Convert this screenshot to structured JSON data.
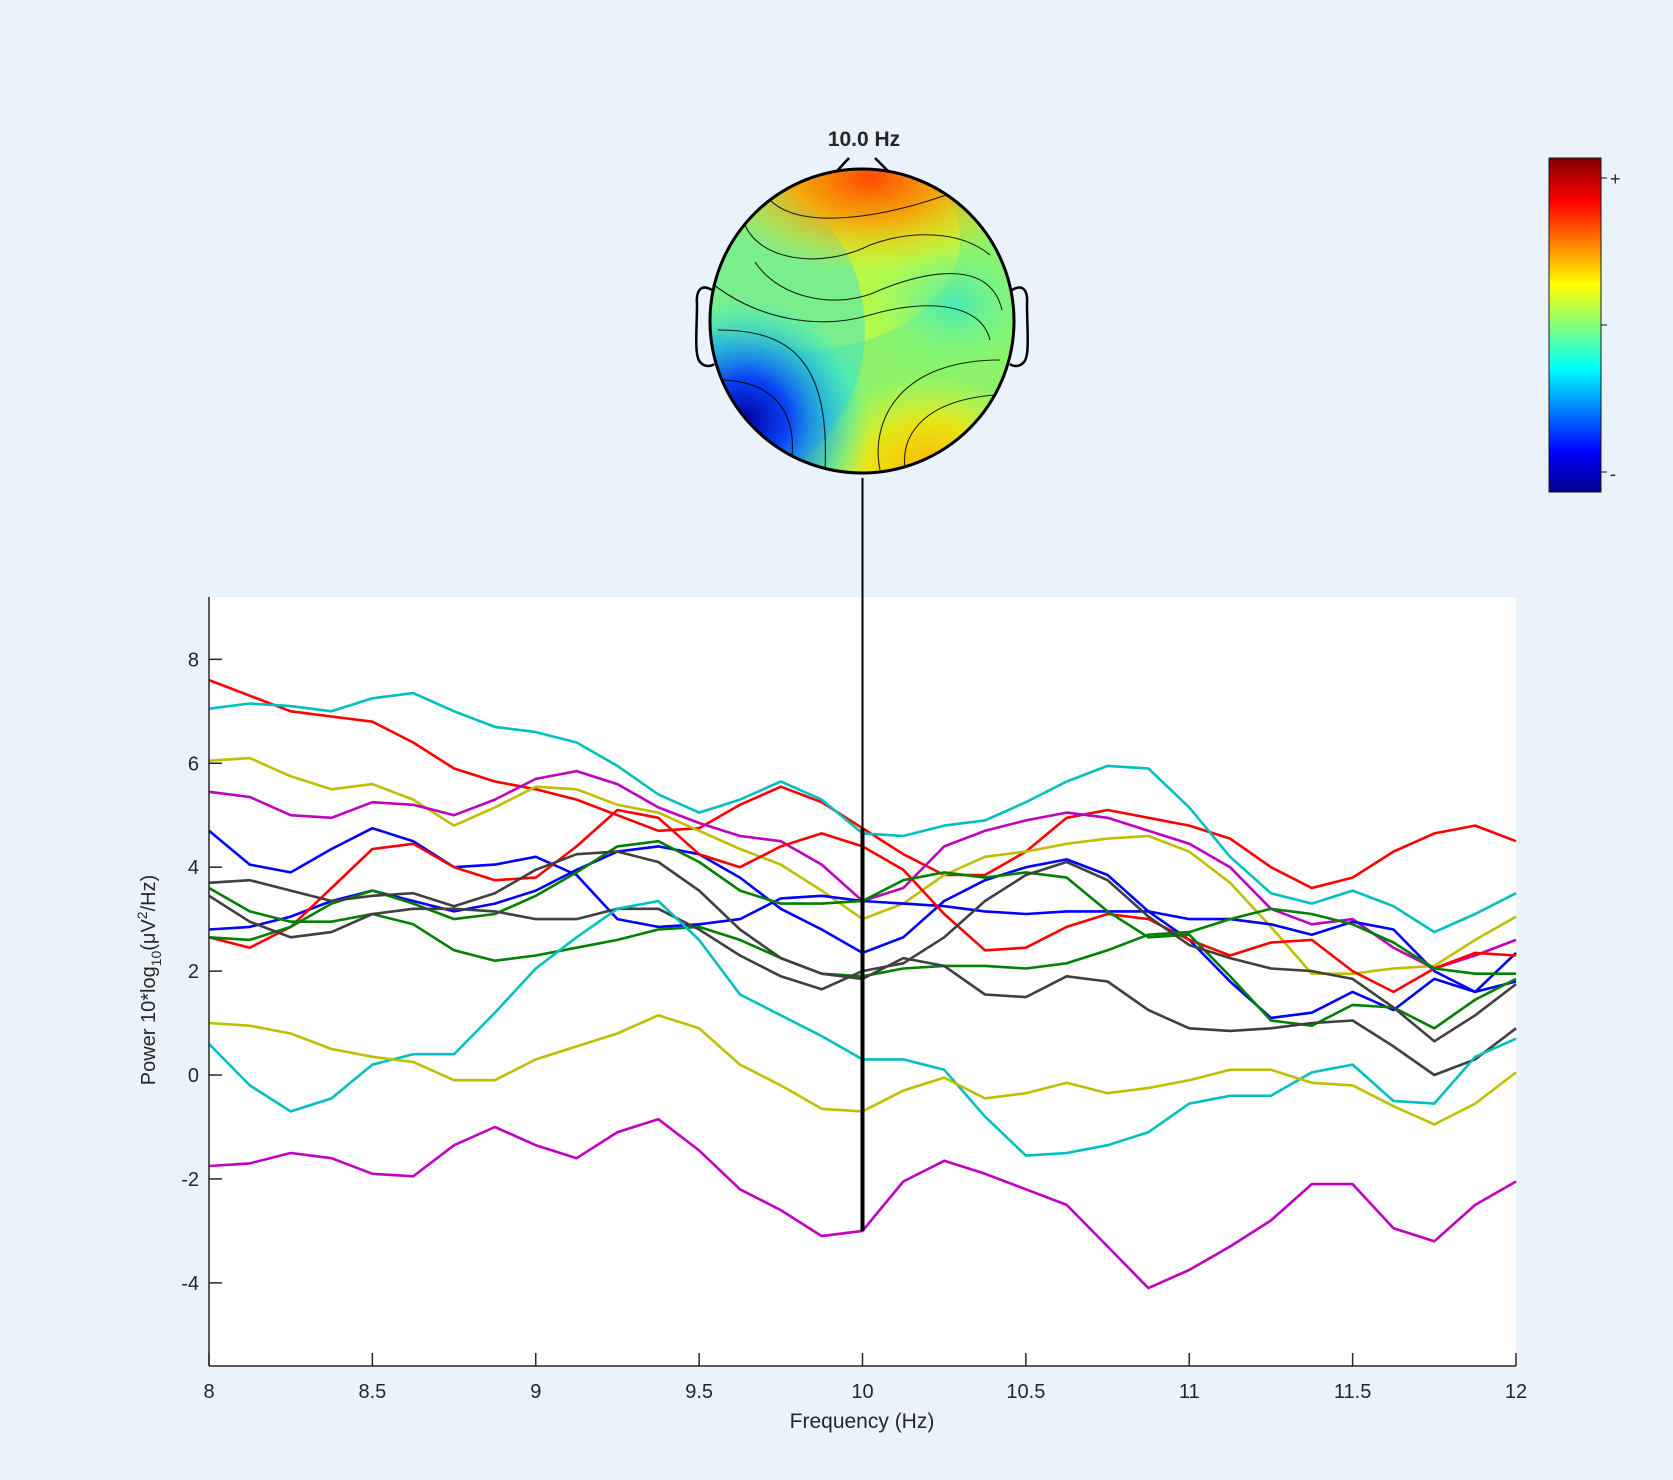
{
  "chart_data": {
    "type": "line",
    "topoplot": {
      "title": "10.0 Hz",
      "frequency": 10,
      "colorbar_labels": {
        "max": "+",
        "min": "-"
      },
      "colormap": [
        "#00008f",
        "#0000ff",
        "#00ffff",
        "#ffff00",
        "#ff0000",
        "#800000"
      ]
    },
    "xlabel": "Frequency (Hz)",
    "ylabel_parts": {
      "prefix": "Power 10*log",
      "sub1": "10",
      "mid": "(μV",
      "sup": "2",
      "suffix": "/Hz)"
    },
    "xlim": [
      8,
      12
    ],
    "ylim": [
      -5.6,
      9.2
    ],
    "xticks": [
      {
        "value": 8,
        "label": "8"
      },
      {
        "value": 8.5,
        "label": "8.5"
      },
      {
        "value": 9,
        "label": "9"
      },
      {
        "value": 9.5,
        "label": "9.5"
      },
      {
        "value": 10,
        "label": "10"
      },
      {
        "value": 10.5,
        "label": "10.5"
      },
      {
        "value": 11,
        "label": "11"
      },
      {
        "value": 11.5,
        "label": "11.5"
      },
      {
        "value": 12,
        "label": "12"
      }
    ],
    "yticks": [
      {
        "value": 8,
        "label": "8"
      },
      {
        "value": 6,
        "label": "6"
      },
      {
        "value": 4,
        "label": "4"
      },
      {
        "value": 2,
        "label": "2"
      },
      {
        "value": 0,
        "label": "0"
      },
      {
        "value": -2,
        "label": "-2"
      },
      {
        "value": -4,
        "label": "-4"
      }
    ],
    "marker": {
      "x": 10,
      "y_range": [
        -3.0,
        4.75
      ]
    },
    "x": [
      8.0,
      8.125,
      8.25,
      8.375,
      8.5,
      8.625,
      8.75,
      8.875,
      9.0,
      9.125,
      9.25,
      9.375,
      9.5,
      9.625,
      9.75,
      9.875,
      10.0,
      10.125,
      10.25,
      10.375,
      10.5,
      10.625,
      10.75,
      10.875,
      11.0,
      11.125,
      11.25,
      11.375,
      11.5,
      11.625,
      11.75,
      11.875,
      12.0
    ],
    "series": [
      {
        "color": "#ff0000",
        "values": [
          7.6,
          7.3,
          7.0,
          6.9,
          6.8,
          6.4,
          5.9,
          5.65,
          5.5,
          5.3,
          5.0,
          4.7,
          4.75,
          5.2,
          5.55,
          5.25,
          4.75,
          4.25,
          3.85,
          3.85,
          4.3,
          4.95,
          5.1,
          4.95,
          4.8,
          4.55,
          4.0,
          3.6,
          3.8,
          4.3,
          4.65,
          4.8,
          4.5
        ]
      },
      {
        "color": "#00bfbf",
        "values": [
          7.05,
          7.15,
          7.1,
          7.0,
          7.25,
          7.35,
          7.0,
          6.7,
          6.6,
          6.4,
          5.95,
          5.4,
          5.05,
          5.3,
          5.65,
          5.3,
          4.65,
          4.6,
          4.8,
          4.9,
          5.25,
          5.65,
          5.95,
          5.9,
          5.15,
          4.2,
          3.5,
          3.3,
          3.55,
          3.25,
          2.75,
          3.1,
          3.5
        ]
      },
      {
        "color": "#bfbf00",
        "values": [
          6.05,
          6.1,
          5.75,
          5.5,
          5.6,
          5.3,
          4.8,
          5.15,
          5.55,
          5.5,
          5.2,
          5.05,
          4.7,
          4.35,
          4.05,
          3.55,
          3.0,
          3.3,
          3.85,
          4.2,
          4.3,
          4.45,
          4.55,
          4.6,
          4.3,
          3.7,
          2.85,
          1.95,
          1.95,
          2.05,
          2.1,
          2.6,
          3.05
        ]
      },
      {
        "color": "#bf00bf",
        "values": [
          5.45,
          5.35,
          5.0,
          4.95,
          5.25,
          5.2,
          5.0,
          5.3,
          5.7,
          5.85,
          5.6,
          5.15,
          4.85,
          4.6,
          4.5,
          4.05,
          3.35,
          3.6,
          4.4,
          4.7,
          4.9,
          5.05,
          4.95,
          4.7,
          4.45,
          4.0,
          3.2,
          2.9,
          3.0,
          2.45,
          2.05,
          2.3,
          2.6
        ]
      },
      {
        "color": "#0000ff",
        "values": [
          4.7,
          4.05,
          3.9,
          4.35,
          4.75,
          4.5,
          4.0,
          4.05,
          4.2,
          3.85,
          3.0,
          2.85,
          2.9,
          3.0,
          3.4,
          3.45,
          3.35,
          3.3,
          3.25,
          3.15,
          3.1,
          3.15,
          3.15,
          3.15,
          3.0,
          3.0,
          2.9,
          2.7,
          2.95,
          2.8,
          2.0,
          1.6,
          2.35
        ]
      },
      {
        "color": "#0000ff",
        "values": [
          2.8,
          2.85,
          3.05,
          3.35,
          3.55,
          3.35,
          3.15,
          3.3,
          3.55,
          3.95,
          4.3,
          4.4,
          4.25,
          3.8,
          3.2,
          2.8,
          2.35,
          2.65,
          3.35,
          3.75,
          4.0,
          4.15,
          3.85,
          3.15,
          2.6,
          1.8,
          1.1,
          1.2,
          1.6,
          1.25,
          1.85,
          1.6,
          1.8
        ]
      },
      {
        "color": "#ff0000",
        "values": [
          2.65,
          2.45,
          2.85,
          3.6,
          4.35,
          4.45,
          4.0,
          3.75,
          3.8,
          4.4,
          5.1,
          4.95,
          4.25,
          4.0,
          4.4,
          4.65,
          4.4,
          3.95,
          3.1,
          2.4,
          2.45,
          2.85,
          3.1,
          3.0,
          2.6,
          2.3,
          2.55,
          2.6,
          2.0,
          1.6,
          2.05,
          2.35,
          2.3
        ]
      },
      {
        "color": "#008000",
        "values": [
          3.6,
          3.15,
          2.95,
          2.95,
          3.1,
          2.9,
          2.4,
          2.2,
          2.3,
          2.45,
          2.6,
          2.8,
          2.85,
          2.6,
          2.25,
          1.95,
          1.9,
          2.05,
          2.1,
          2.1,
          2.05,
          2.15,
          2.4,
          2.7,
          2.75,
          3.0,
          3.2,
          3.1,
          2.9,
          2.55,
          2.05,
          1.95,
          1.95
        ]
      },
      {
        "color": "#008000",
        "values": [
          2.65,
          2.6,
          2.85,
          3.3,
          3.55,
          3.3,
          3.0,
          3.1,
          3.45,
          3.9,
          4.4,
          4.5,
          4.1,
          3.55,
          3.3,
          3.3,
          3.35,
          3.75,
          3.9,
          3.8,
          3.9,
          3.8,
          3.15,
          2.65,
          2.7,
          1.9,
          1.05,
          0.95,
          1.35,
          1.3,
          0.9,
          1.45,
          1.85
        ]
      },
      {
        "color": "#404040",
        "values": [
          3.7,
          3.75,
          3.55,
          3.35,
          3.45,
          3.5,
          3.25,
          3.5,
          3.95,
          4.25,
          4.3,
          4.1,
          3.55,
          2.8,
          2.25,
          1.95,
          1.85,
          2.25,
          2.1,
          1.55,
          1.5,
          1.9,
          1.8,
          1.25,
          0.9,
          0.85,
          0.9,
          1.0,
          1.05,
          0.55,
          0.0,
          0.3,
          0.9
        ]
      },
      {
        "color": "#404040",
        "values": [
          3.45,
          2.95,
          2.65,
          2.75,
          3.1,
          3.2,
          3.2,
          3.15,
          3.0,
          3.0,
          3.2,
          3.2,
          2.8,
          2.3,
          1.9,
          1.65,
          2.0,
          2.15,
          2.65,
          3.35,
          3.85,
          4.1,
          3.75,
          3.05,
          2.5,
          2.25,
          2.05,
          2.0,
          1.85,
          1.3,
          0.65,
          1.15,
          1.75
        ]
      },
      {
        "color": "#00bfbf",
        "values": [
          0.6,
          -0.2,
          -0.7,
          -0.45,
          0.2,
          0.4,
          0.4,
          1.2,
          2.05,
          2.65,
          3.2,
          3.35,
          2.6,
          1.55,
          1.15,
          0.75,
          0.3,
          0.3,
          0.1,
          -0.8,
          -1.55,
          -1.5,
          -1.35,
          -1.1,
          -0.55,
          -0.4,
          -0.4,
          0.05,
          0.2,
          -0.5,
          -0.55,
          0.35,
          0.7
        ]
      },
      {
        "color": "#bfbf00",
        "values": [
          1.0,
          0.95,
          0.8,
          0.5,
          0.35,
          0.25,
          -0.1,
          -0.1,
          0.3,
          0.55,
          0.8,
          1.15,
          0.9,
          0.2,
          -0.2,
          -0.65,
          -0.7,
          -0.3,
          -0.05,
          -0.45,
          -0.35,
          -0.15,
          -0.35,
          -0.25,
          -0.1,
          0.1,
          0.1,
          -0.15,
          -0.2,
          -0.6,
          -0.95,
          -0.55,
          0.05
        ]
      },
      {
        "color": "#bf00bf",
        "values": [
          -1.75,
          -1.7,
          -1.5,
          -1.6,
          -1.9,
          -1.95,
          -1.35,
          -1.0,
          -1.35,
          -1.6,
          -1.1,
          -0.85,
          -1.45,
          -2.2,
          -2.6,
          -3.1,
          -3.0,
          -2.05,
          -1.65,
          -1.9,
          -2.2,
          -2.5,
          -3.3,
          -4.1,
          -3.75,
          -3.3,
          -2.8,
          -2.1,
          -2.1,
          -2.95,
          -3.2,
          -2.5,
          -2.05
        ]
      }
    ]
  }
}
